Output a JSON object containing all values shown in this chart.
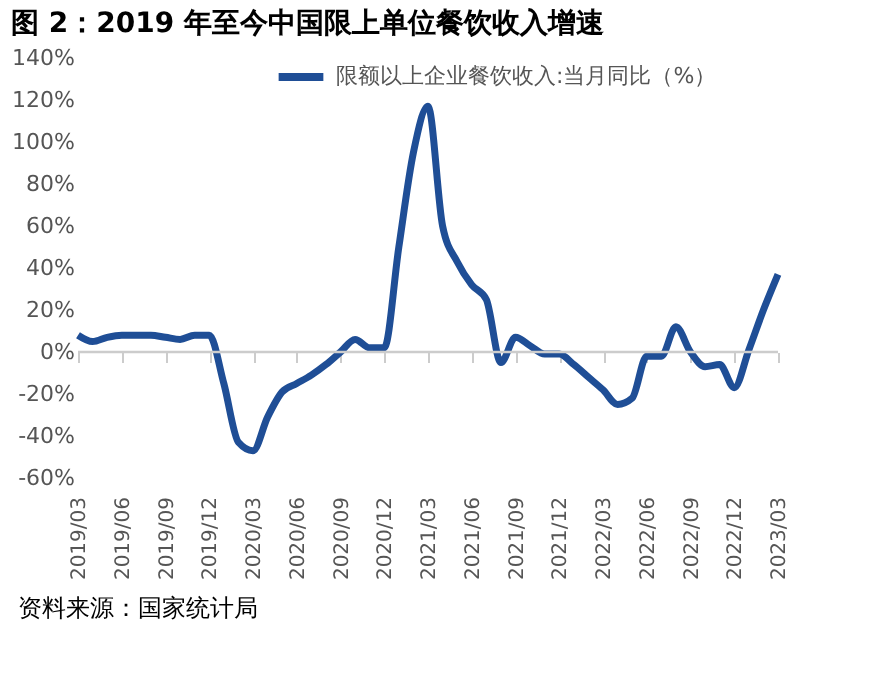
{
  "chart_data": {
    "type": "line",
    "title": "图 2：2019 年至今中国限上单位餐饮收入增速",
    "categories": [
      "2019/03",
      null,
      null,
      "2019/06",
      null,
      null,
      "2019/09",
      null,
      null,
      "2019/12",
      null,
      null,
      "2020/03",
      null,
      null,
      "2020/06",
      null,
      null,
      "2020/09",
      null,
      null,
      "2020/12",
      null,
      null,
      "2021/03",
      null,
      null,
      "2021/06",
      null,
      null,
      "2021/09",
      null,
      null,
      "2021/12",
      null,
      null,
      "2022/03",
      null,
      null,
      "2022/06",
      null,
      null,
      "2022/09",
      null,
      null,
      "2022/12",
      null,
      null,
      "2023/03"
    ],
    "series": [
      {
        "name": "限额以上企业餐饮收入:当月同比（%）",
        "color": "#1f4e96",
        "values": [
          8,
          5,
          7,
          8,
          8,
          8,
          7,
          6,
          8,
          8,
          -15,
          -43,
          -47,
          -31,
          -19,
          -15,
          -11,
          -6,
          0,
          6,
          2,
          2,
          50,
          95,
          117,
          60,
          43,
          32,
          25,
          -5,
          7,
          3,
          -1,
          -1,
          -6,
          -12,
          -18,
          -25,
          -22,
          -2,
          -2,
          12,
          0,
          -7,
          -6,
          -17,
          1,
          20,
          37
        ]
      }
    ],
    "ylim": [
      -60,
      140
    ],
    "yticks": [
      {
        "value": -60,
        "label": "-60%"
      },
      {
        "value": -40,
        "label": "-40%"
      },
      {
        "value": -20,
        "label": "-20%"
      },
      {
        "value": 0,
        "label": "0%"
      },
      {
        "value": 20,
        "label": "20%"
      },
      {
        "value": 40,
        "label": "40%"
      },
      {
        "value": 60,
        "label": "60%"
      },
      {
        "value": 80,
        "label": "80%"
      },
      {
        "value": 100,
        "label": "100%"
      },
      {
        "value": 120,
        "label": "120%"
      },
      {
        "value": 140,
        "label": "140%"
      }
    ],
    "ref_lines": [
      {
        "axis": "y",
        "value": 0,
        "color": "#cccccc"
      }
    ],
    "grid": false,
    "legend": "top right",
    "marker": "none",
    "line_style": "solid",
    "annotations": [
      "资料来源：国家统计局"
    ]
  }
}
